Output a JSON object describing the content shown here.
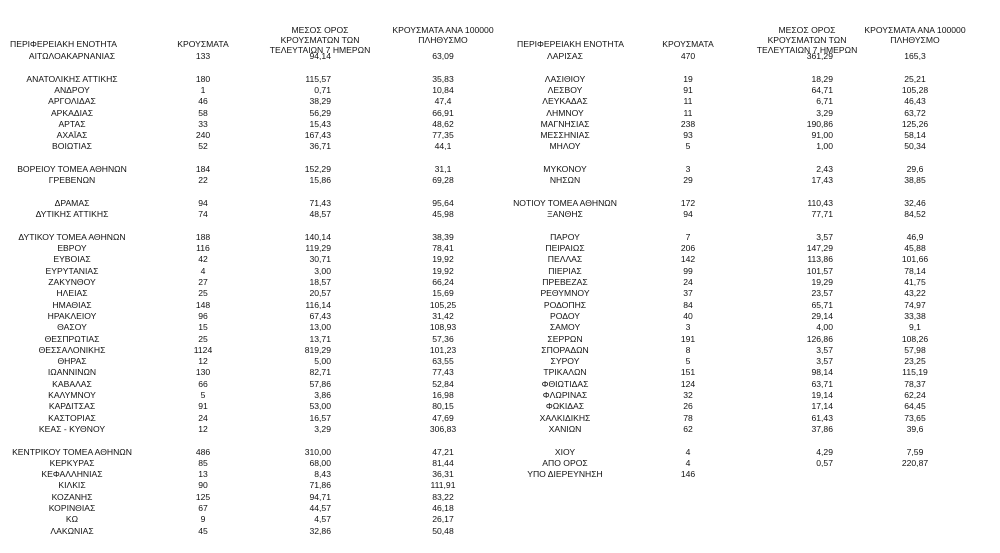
{
  "tables": [
    {
      "header": [
        "ΠΕΡΙΦΕΡΕΙΑΚΗ ΕΝΟΤΗΤΑ",
        "ΚΡΟΥΣΜΑΤΑ",
        "ΜΕΣΟΣ ΟΡΟΣ ΚΡΟΥΣΜΑΤΩΝ ΤΩΝ ΤΕΛΕΥΤΑΙΩΝ 7 ΗΜΕΡΩΝ",
        "ΚΡΟΥΣΜΑΤΑ ΑΝΑ 100000 ΠΛΗΘΥΣΜΟ"
      ],
      "groups": [
        [
          [
            "ΑΙΤΩΛΟΑΚΑΡΝΑΝΙΑΣ",
            "133",
            "94,14",
            "63,09"
          ]
        ],
        [
          [
            "ΑΝΑΤΟΛΙΚΗΣ ΑΤΤΙΚΗΣ",
            "180",
            "115,57",
            "35,83"
          ],
          [
            "ΑΝΔΡΟΥ",
            "1",
            "0,71",
            "10,84"
          ],
          [
            "ΑΡΓΟΛΙΔΑΣ",
            "46",
            "38,29",
            "47,4"
          ],
          [
            "ΑΡΚΑΔΙΑΣ",
            "58",
            "56,29",
            "66,91"
          ],
          [
            "ΑΡΤΑΣ",
            "33",
            "15,43",
            "48,62"
          ],
          [
            "ΑΧΑΪΑΣ",
            "240",
            "167,43",
            "77,35"
          ],
          [
            "ΒΟΙΩΤΙΑΣ",
            "52",
            "36,71",
            "44,1"
          ]
        ],
        [
          [
            "ΒΟΡΕΙΟΥ ΤΟΜΕΑ ΑΘΗΝΩΝ",
            "184",
            "152,29",
            "31,1"
          ],
          [
            "ΓΡΕΒΕΝΩΝ",
            "22",
            "15,86",
            "69,28"
          ]
        ],
        [
          [
            "ΔΡΑΜΑΣ",
            "94",
            "71,43",
            "95,64"
          ],
          [
            "ΔΥΤΙΚΗΣ ΑΤΤΙΚΗΣ",
            "74",
            "48,57",
            "45,98"
          ]
        ],
        [
          [
            "ΔΥΤΙΚΟΥ ΤΟΜΕΑ ΑΘΗΝΩΝ",
            "188",
            "140,14",
            "38,39"
          ],
          [
            "ΕΒΡΟΥ",
            "116",
            "119,29",
            "78,41"
          ],
          [
            "ΕΥΒΟΙΑΣ",
            "42",
            "30,71",
            "19,92"
          ],
          [
            "ΕΥΡΥΤΑΝΙΑΣ",
            "4",
            "3,00",
            "19,92"
          ],
          [
            "ΖΑΚΥΝΘΟΥ",
            "27",
            "18,57",
            "66,24"
          ],
          [
            "ΗΛΕΙΑΣ",
            "25",
            "20,57",
            "15,69"
          ],
          [
            "ΗΜΑΘΙΑΣ",
            "148",
            "116,14",
            "105,25"
          ],
          [
            "ΗΡΑΚΛΕΙΟΥ",
            "96",
            "67,43",
            "31,42"
          ],
          [
            "ΘΑΣΟΥ",
            "15",
            "13,00",
            "108,93"
          ],
          [
            "ΘΕΣΠΡΩΤΙΑΣ",
            "25",
            "13,71",
            "57,36"
          ],
          [
            "ΘΕΣΣΑΛΟΝΙΚΗΣ",
            "1124",
            "819,29",
            "101,23"
          ],
          [
            "ΘΗΡΑΣ",
            "12",
            "5,00",
            "63,55"
          ],
          [
            "ΙΩΑΝΝΙΝΩΝ",
            "130",
            "82,71",
            "77,43"
          ],
          [
            "ΚΑΒΑΛΑΣ",
            "66",
            "57,86",
            "52,84"
          ],
          [
            "ΚΑΛΥΜΝΟΥ",
            "5",
            "3,86",
            "16,98"
          ],
          [
            "ΚΑΡΔΙΤΣΑΣ",
            "91",
            "53,00",
            "80,15"
          ],
          [
            "ΚΑΣΤΟΡΙΑΣ",
            "24",
            "16,57",
            "47,69"
          ],
          [
            "ΚΕΑΣ - ΚΥΘΝΟΥ",
            "12",
            "3,29",
            "306,83"
          ]
        ],
        [
          [
            "ΚΕΝΤΡΙΚΟΥ ΤΟΜΕΑ ΑΘΗΝΩΝ",
            "486",
            "310,00",
            "47,21"
          ],
          [
            "ΚΕΡΚΥΡΑΣ",
            "85",
            "68,00",
            "81,44"
          ],
          [
            "ΚΕΦΑΛΛΗΝΙΑΣ",
            "13",
            "8,43",
            "36,31"
          ],
          [
            "ΚΙΛΚΙΣ",
            "90",
            "71,86",
            "111,91"
          ],
          [
            "ΚΟΖΑΝΗΣ",
            "125",
            "94,71",
            "83,22"
          ],
          [
            "ΚΟΡΙΝΘΙΑΣ",
            "67",
            "44,57",
            "46,18"
          ],
          [
            "ΚΩ",
            "9",
            "4,57",
            "26,17"
          ],
          [
            "ΛΑΚΩΝΙΑΣ",
            "45",
            "32,86",
            "50,48"
          ]
        ]
      ]
    },
    {
      "header": [
        "ΠΕΡΙΦΕΡΕΙΑΚΗ ΕΝΟΤΗΤΑ",
        "ΚΡΟΥΣΜΑΤΑ",
        "ΜΕΣΟΣ ΟΡΟΣ ΚΡΟΥΣΜΑΤΩΝ ΤΩΝ ΤΕΛΕΥΤΑΙΩΝ 7 ΗΜΕΡΩΝ",
        "ΚΡΟΥΣΜΑΤΑ ΑΝΑ 100000 ΠΛΗΘΥΣΜΟ"
      ],
      "groups": [
        [
          [
            "ΛΑΡΙΣΑΣ",
            "470",
            "361,29",
            "165,3"
          ]
        ],
        [
          [
            "ΛΑΣΙΘΙΟΥ",
            "19",
            "18,29",
            "25,21"
          ],
          [
            "ΛΕΣΒΟΥ",
            "91",
            "64,71",
            "105,28"
          ],
          [
            "ΛΕΥΚΑΔΑΣ",
            "11",
            "6,71",
            "46,43"
          ],
          [
            "ΛΗΜΝΟΥ",
            "11",
            "3,29",
            "63,72"
          ],
          [
            "ΜΑΓΝΗΣΙΑΣ",
            "238",
            "190,86",
            "125,26"
          ],
          [
            "ΜΕΣΣΗΝΙΑΣ",
            "93",
            "91,00",
            "58,14"
          ],
          [
            "ΜΗΛΟΥ",
            "5",
            "1,00",
            "50,34"
          ]
        ],
        [
          [
            "ΜΥΚΟΝΟΥ",
            "3",
            "2,43",
            "29,6"
          ],
          [
            "ΝΗΣΩΝ",
            "29",
            "17,43",
            "38,85"
          ]
        ],
        [
          [
            "ΝΟΤΙΟΥ ΤΟΜΕΑ ΑΘΗΝΩΝ",
            "172",
            "110,43",
            "32,46"
          ],
          [
            "ΞΑΝΘΗΣ",
            "94",
            "77,71",
            "84,52"
          ]
        ],
        [
          [
            "ΠΑΡΟΥ",
            "7",
            "3,57",
            "46,9"
          ],
          [
            "ΠΕΙΡΑΙΩΣ",
            "206",
            "147,29",
            "45,88"
          ],
          [
            "ΠΕΛΛΑΣ",
            "142",
            "113,86",
            "101,66"
          ],
          [
            "ΠΙΕΡΙΑΣ",
            "99",
            "101,57",
            "78,14"
          ],
          [
            "ΠΡΕΒΕΖΑΣ",
            "24",
            "19,29",
            "41,75"
          ],
          [
            "ΡΕΘΥΜΝΟΥ",
            "37",
            "23,57",
            "43,22"
          ],
          [
            "ΡΟΔΟΠΗΣ",
            "84",
            "65,71",
            "74,97"
          ],
          [
            "ΡΟΔΟΥ",
            "40",
            "29,14",
            "33,38"
          ],
          [
            "ΣΑΜΟΥ",
            "3",
            "4,00",
            "9,1"
          ],
          [
            "ΣΕΡΡΩΝ",
            "191",
            "126,86",
            "108,26"
          ],
          [
            "ΣΠΟΡΑΔΩΝ",
            "8",
            "3,57",
            "57,98"
          ],
          [
            "ΣΥΡΟΥ",
            "5",
            "3,57",
            "23,25"
          ],
          [
            "ΤΡΙΚΑΛΩΝ",
            "151",
            "98,14",
            "115,19"
          ],
          [
            "ΦΘΙΩΤΙΔΑΣ",
            "124",
            "63,71",
            "78,37"
          ],
          [
            "ΦΛΩΡΙΝΑΣ",
            "32",
            "19,14",
            "62,24"
          ],
          [
            "ΦΩΚΙΔΑΣ",
            "26",
            "17,14",
            "64,45"
          ],
          [
            "ΧΑΛΚΙΔΙΚΗΣ",
            "78",
            "61,43",
            "73,65"
          ],
          [
            "ΧΑΝΙΩΝ",
            "62",
            "37,86",
            "39,6"
          ]
        ],
        [
          [
            "ΧΙΟΥ",
            "4",
            "4,29",
            "7,59"
          ],
          [
            "ΑΠΟ ΟΡΟΣ",
            "4",
            "0,57",
            "220,87"
          ],
          [
            "ΥΠΟ ΔΙΕΡΕΥΝΗΣΗ",
            "146"
          ]
        ]
      ]
    }
  ]
}
